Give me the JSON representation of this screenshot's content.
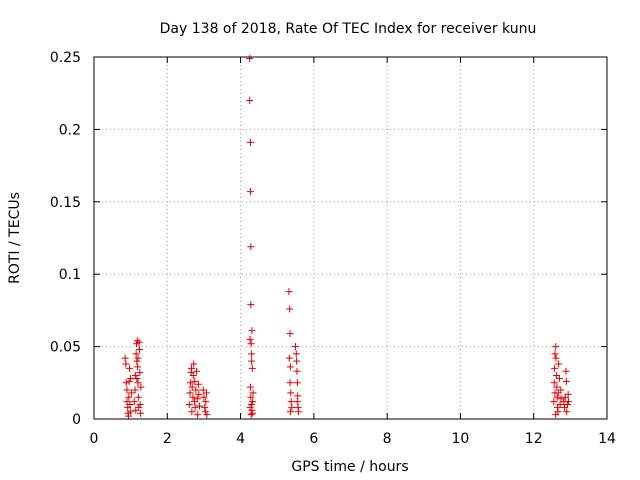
{
  "chart_data": {
    "type": "scatter",
    "title": "Day 138 of 2018, Rate Of TEC Index for receiver kunu",
    "xlabel": "GPS time / hours",
    "ylabel": "ROTI / TECUs",
    "xlim": [
      0,
      14
    ],
    "ylim": [
      0,
      0.25
    ],
    "x_ticks": [
      {
        "value": 0,
        "label": "0"
      },
      {
        "value": 2,
        "label": "2"
      },
      {
        "value": 4,
        "label": "4"
      },
      {
        "value": 6,
        "label": "6"
      },
      {
        "value": 8,
        "label": "8"
      },
      {
        "value": 10,
        "label": "10"
      },
      {
        "value": 12,
        "label": "12"
      },
      {
        "value": 14,
        "label": "14"
      }
    ],
    "y_ticks": [
      {
        "value": 0,
        "label": "0"
      },
      {
        "value": 0.05,
        "label": "0.05"
      },
      {
        "value": 0.1,
        "label": "0.1"
      },
      {
        "value": 0.15,
        "label": "0.15"
      },
      {
        "value": 0.2,
        "label": "0.2"
      },
      {
        "value": 0.25,
        "label": "0.25"
      }
    ],
    "grid": true,
    "marker": "plus",
    "series": [
      {
        "name": "ROTI",
        "color": "#e00000",
        "points": [
          [
            0.85,
            0.042
          ],
          [
            0.87,
            0.038
          ],
          [
            0.88,
            0.025
          ],
          [
            0.9,
            0.02
          ],
          [
            0.9,
            0.012
          ],
          [
            0.92,
            0.008
          ],
          [
            0.93,
            0.004
          ],
          [
            0.95,
            0.015
          ],
          [
            0.96,
            0.026
          ],
          [
            0.98,
            0.01
          ],
          [
            1.0,
            0.005
          ],
          [
            1.0,
            0.028
          ],
          [
            1.02,
            0.018
          ],
          [
            0.94,
            0.002
          ],
          [
            0.97,
            0.035
          ],
          [
            1.1,
            0.012
          ],
          [
            1.12,
            0.02
          ],
          [
            1.13,
            0.03
          ],
          [
            1.15,
            0.045
          ],
          [
            1.16,
            0.052
          ],
          [
            1.17,
            0.04
          ],
          [
            1.18,
            0.054
          ],
          [
            1.19,
            0.036
          ],
          [
            1.2,
            0.025
          ],
          [
            1.21,
            0.015
          ],
          [
            1.22,
            0.008
          ],
          [
            1.23,
            0.053
          ],
          [
            1.24,
            0.048
          ],
          [
            1.25,
            0.032
          ],
          [
            1.26,
            0.01
          ],
          [
            1.27,
            0.004
          ],
          [
            1.28,
            0.022
          ],
          [
            1.14,
            0.006
          ],
          [
            1.17,
            0.028
          ],
          [
            1.2,
            0.042
          ],
          [
            2.6,
            0.01
          ],
          [
            2.62,
            0.018
          ],
          [
            2.63,
            0.025
          ],
          [
            2.65,
            0.032
          ],
          [
            2.66,
            0.035
          ],
          [
            2.67,
            0.005
          ],
          [
            2.68,
            0.022
          ],
          [
            2.7,
            0.015
          ],
          [
            2.71,
            0.03
          ],
          [
            2.72,
            0.038
          ],
          [
            2.74,
            0.012
          ],
          [
            2.75,
            0.026
          ],
          [
            2.76,
            0.008
          ],
          [
            2.78,
            0.02
          ],
          [
            2.8,
            0.033
          ],
          [
            2.82,
            0.014
          ],
          [
            2.83,
            0.003
          ],
          [
            2.85,
            0.024
          ],
          [
            2.86,
            0.017
          ],
          [
            2.88,
            0.009
          ],
          [
            2.98,
            0.02
          ],
          [
            3.0,
            0.015
          ],
          [
            3.02,
            0.008
          ],
          [
            3.04,
            0.005
          ],
          [
            3.05,
            0.012
          ],
          [
            3.07,
            0.018
          ],
          [
            3.08,
            0.003
          ],
          [
            4.25,
            0.249
          ],
          [
            4.25,
            0.22
          ],
          [
            4.27,
            0.191
          ],
          [
            4.27,
            0.157
          ],
          [
            4.28,
            0.119
          ],
          [
            4.28,
            0.079
          ],
          [
            4.26,
            0.055
          ],
          [
            4.29,
            0.052
          ],
          [
            4.3,
            0.045
          ],
          [
            4.3,
            0.04
          ],
          [
            4.31,
            0.061
          ],
          [
            4.32,
            0.035
          ],
          [
            4.27,
            0.022
          ],
          [
            4.28,
            0.015
          ],
          [
            4.3,
            0.01
          ],
          [
            4.31,
            0.006
          ],
          [
            4.29,
            0.003
          ],
          [
            4.33,
            0.012
          ],
          [
            4.34,
            0.018
          ],
          [
            4.26,
            0.008
          ],
          [
            4.32,
            0.004
          ],
          [
            5.32,
            0.088
          ],
          [
            5.34,
            0.076
          ],
          [
            5.35,
            0.059
          ],
          [
            5.33,
            0.042
          ],
          [
            5.36,
            0.036
          ],
          [
            5.35,
            0.025
          ],
          [
            5.37,
            0.018
          ],
          [
            5.38,
            0.012
          ],
          [
            5.36,
            0.005
          ],
          [
            5.4,
            0.008
          ],
          [
            5.5,
            0.05
          ],
          [
            5.52,
            0.045
          ],
          [
            5.53,
            0.04
          ],
          [
            5.54,
            0.033
          ],
          [
            5.55,
            0.025
          ],
          [
            5.56,
            0.016
          ],
          [
            5.57,
            0.008
          ],
          [
            5.58,
            0.005
          ],
          [
            5.55,
            0.012
          ],
          [
            12.55,
            0.012
          ],
          [
            12.56,
            0.025
          ],
          [
            12.57,
            0.035
          ],
          [
            12.58,
            0.045
          ],
          [
            12.6,
            0.05
          ],
          [
            12.61,
            0.042
          ],
          [
            12.62,
            0.03
          ],
          [
            12.63,
            0.022
          ],
          [
            12.64,
            0.015
          ],
          [
            12.65,
            0.008
          ],
          [
            12.66,
            0.005
          ],
          [
            12.67,
            0.018
          ],
          [
            12.68,
            0.038
          ],
          [
            12.7,
            0.028
          ],
          [
            12.72,
            0.01
          ],
          [
            12.74,
            0.02
          ],
          [
            12.75,
            0.014
          ],
          [
            12.6,
            0.003
          ],
          [
            12.58,
            0.018
          ],
          [
            12.82,
            0.012
          ],
          [
            12.84,
            0.008
          ],
          [
            12.86,
            0.015
          ],
          [
            12.88,
            0.033
          ],
          [
            12.89,
            0.026
          ],
          [
            12.9,
            0.005
          ],
          [
            12.92,
            0.01
          ],
          [
            12.94,
            0.017
          ],
          [
            12.95,
            0.012
          ]
        ]
      }
    ]
  }
}
